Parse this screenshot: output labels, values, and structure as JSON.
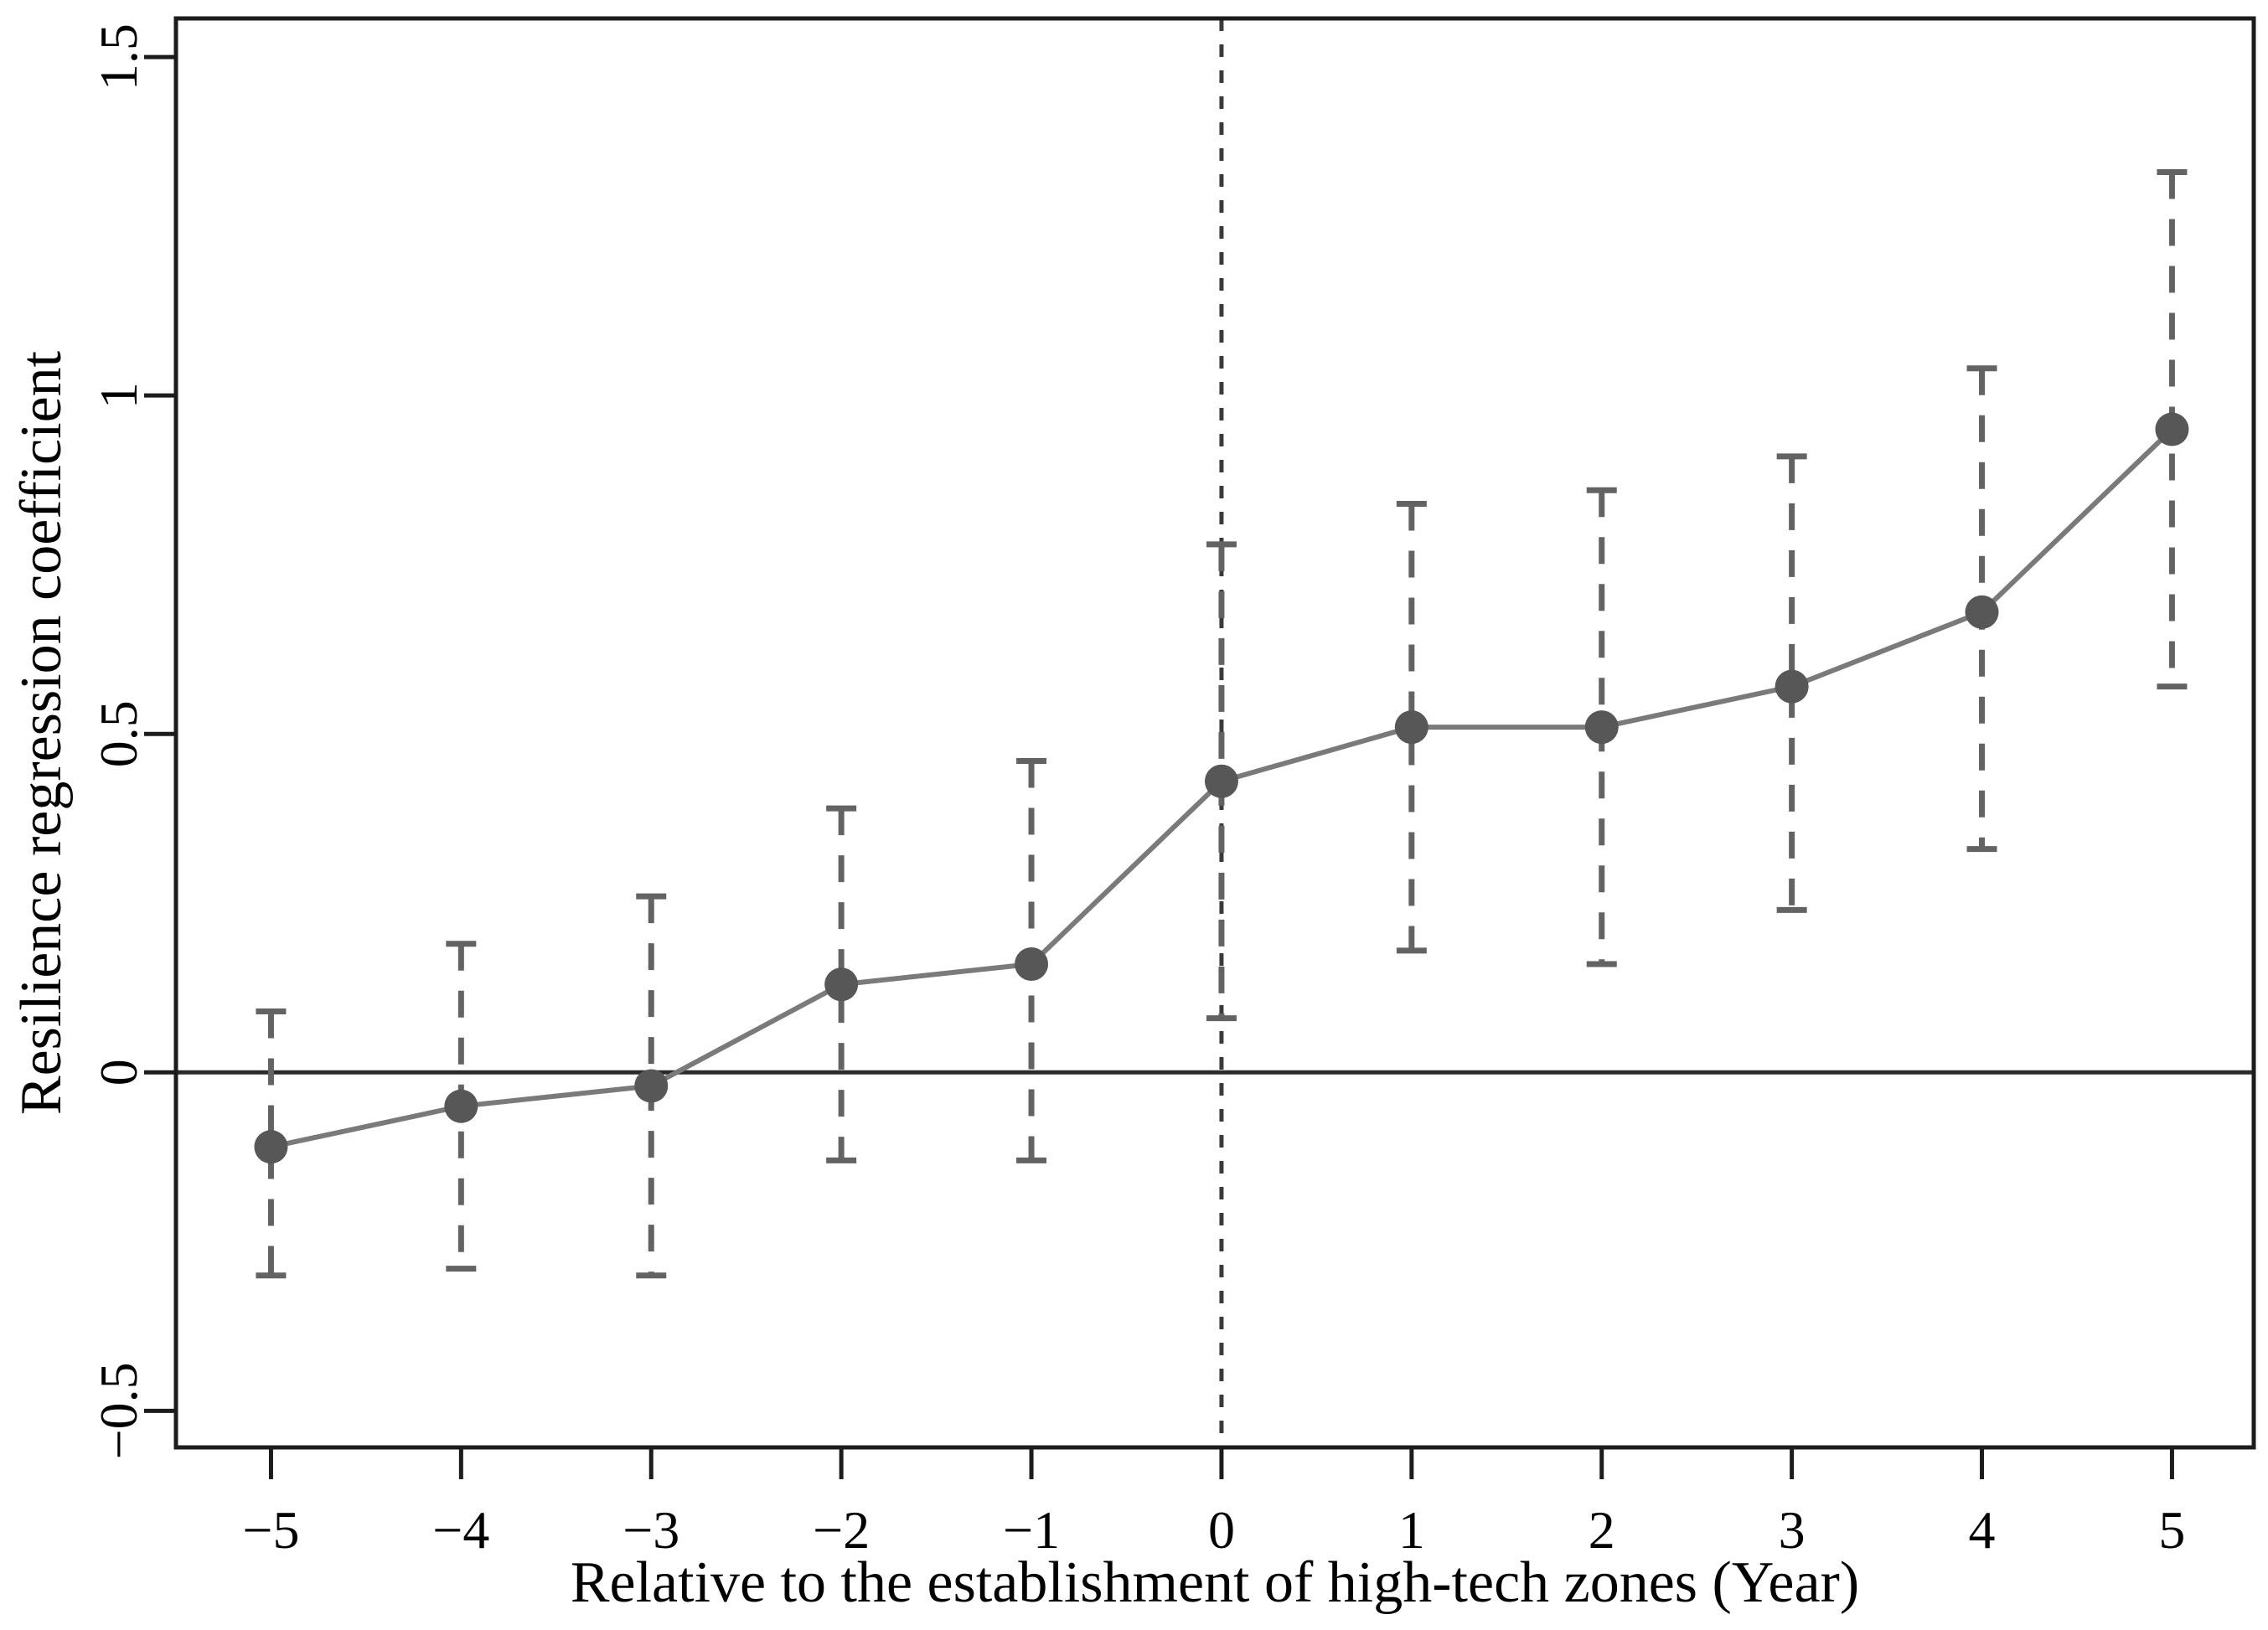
{
  "chart_data": {
    "type": "line",
    "title": "",
    "xlabel": "Relative to the establishment of high-tech zones (Year)",
    "ylabel": "Resilience regression coefficient",
    "x": [
      -5,
      -4,
      -3,
      -2,
      -1,
      0,
      1,
      2,
      3,
      4,
      5
    ],
    "series": [
      {
        "name": "Resilience regression coefficient",
        "values": [
          -0.11,
          -0.05,
          -0.02,
          0.13,
          0.16,
          0.43,
          0.51,
          0.51,
          0.57,
          0.68,
          0.95
        ],
        "ci_low": [
          -0.3,
          -0.29,
          -0.3,
          -0.13,
          -0.13,
          0.08,
          0.18,
          0.16,
          0.24,
          0.33,
          0.57
        ],
        "ci_high": [
          0.09,
          0.19,
          0.26,
          0.39,
          0.46,
          0.78,
          0.84,
          0.86,
          0.91,
          1.04,
          1.33
        ]
      }
    ],
    "xtick_labels": [
      "−5",
      "−4",
      "−3",
      "−2",
      "−1",
      "0",
      "1",
      "2",
      "3",
      "4",
      "5"
    ],
    "ytick_values": [
      1.5,
      1,
      0.5,
      0,
      -0.5
    ],
    "ytick_labels": [
      "1.5",
      "1",
      "0.5",
      "0",
      "−0.5"
    ],
    "xlim": [
      -5.5,
      5.43
    ],
    "ylim": [
      -0.554,
      1.557
    ],
    "reference_h_line": 0,
    "reference_v_line": 0,
    "grid": false,
    "legend": "none",
    "marker": "filled-circle",
    "ci_style": "dashed-with-caps"
  },
  "style": {
    "background": "#ffffff",
    "frame_color": "#1c1c1c",
    "zero_line_color": "#2b2b2b",
    "vline_color": "#3a3a3a",
    "series_line_color": "#7a7a7a",
    "errorbar_color": "#636363",
    "marker_color": "#575757",
    "text_color": "#000000"
  }
}
